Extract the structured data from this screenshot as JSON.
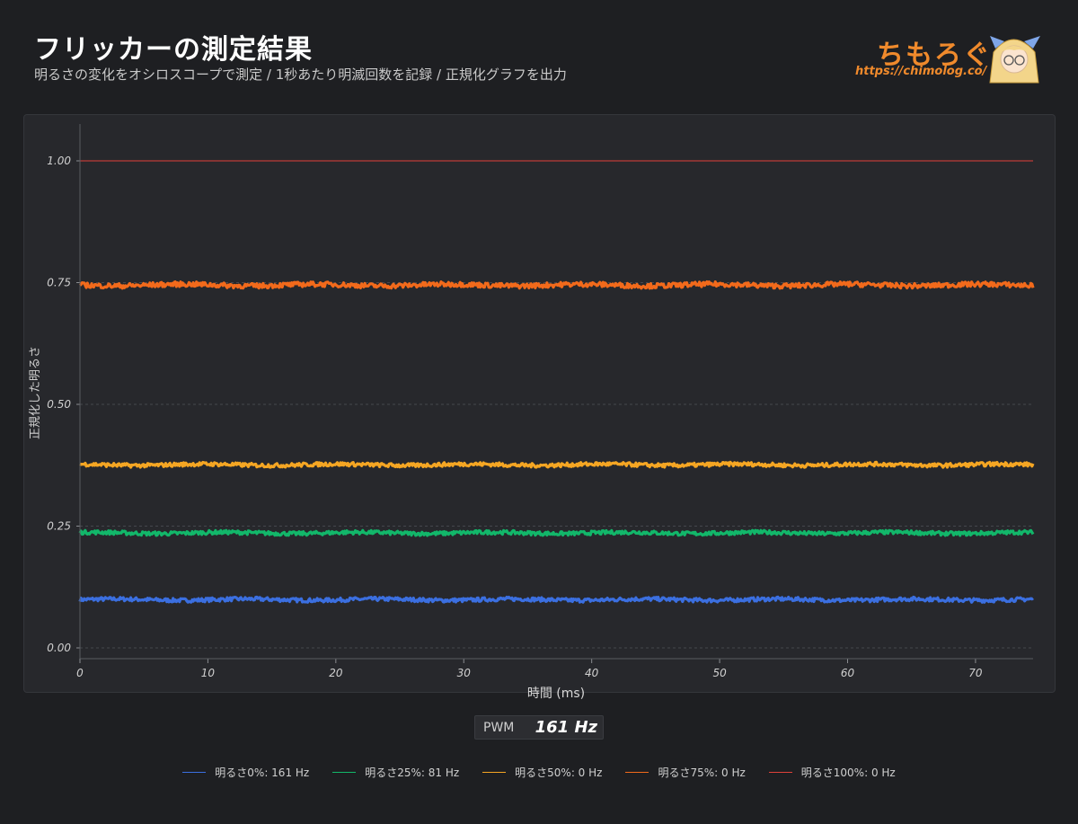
{
  "header": {
    "title": "フリッカーの測定結果",
    "subtitle": "明るさの変化をオシロスコープで測定 / 1秒あたり明滅回数を記録 / 正規化グラフを出力"
  },
  "logo": {
    "name": "ちもろぐ",
    "url": "https://chimolog.co/",
    "icon": "mascot-icon"
  },
  "pwm": {
    "label": "PWM",
    "value": "161 Hz"
  },
  "chart_data": {
    "type": "line",
    "title": "",
    "xlabel": "時間 (ms)",
    "ylabel": "正規化した明るさ",
    "xlim": [
      0,
      74.5
    ],
    "ylim": [
      -0.02,
      1.08
    ],
    "xticks": [
      0,
      10,
      20,
      30,
      40,
      50,
      60,
      70
    ],
    "yticks": [
      "0.00",
      "0.25",
      "0.50",
      "0.75",
      "1.00"
    ],
    "grid": true,
    "legend_position": "bottom",
    "series": [
      {
        "name": "明るさ0%: 161 Hz",
        "color": "#3b6fe0",
        "level": 0.099,
        "noise": 0.004
      },
      {
        "name": "明るさ25%: 81 Hz",
        "color": "#12b76a",
        "level": 0.236,
        "noise": 0.004
      },
      {
        "name": "明るさ50%: 0 Hz",
        "color": "#f5a623",
        "level": 0.376,
        "noise": 0.004
      },
      {
        "name": "明るさ75%: 0 Hz",
        "color": "#f26a1b",
        "level": 0.745,
        "noise": 0.005
      },
      {
        "name": "明るさ100%: 0 Hz",
        "color": "#e0413a",
        "level": 1.0,
        "noise": 0.0
      }
    ]
  }
}
